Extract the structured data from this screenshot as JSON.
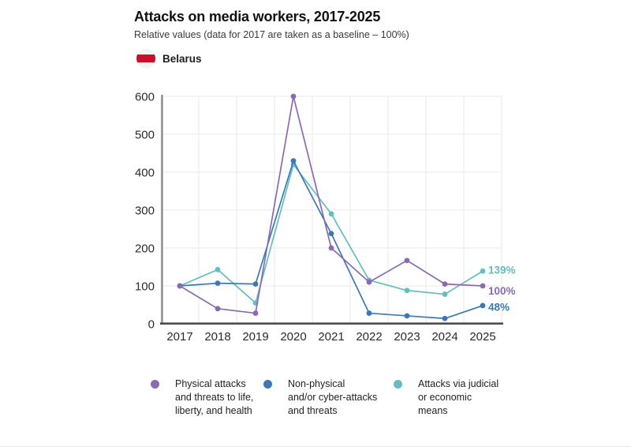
{
  "header": {
    "title": "Attacks on media workers, 2017-2025",
    "subtitle": "Relative values (data for 2017 are taken as a baseline – 100%)"
  },
  "country": {
    "name": "Belarus",
    "flag_red": "#c8102e"
  },
  "chart_data": {
    "type": "line",
    "x": [
      2017,
      2018,
      2019,
      2020,
      2021,
      2022,
      2023,
      2024,
      2025
    ],
    "series": [
      {
        "name": "Physical attacks and threats to life, liberty, and health",
        "color": "#8a6ab0",
        "values": [
          100,
          40,
          28,
          600,
          200,
          110,
          167,
          105,
          100
        ],
        "end_label": "100%"
      },
      {
        "name": "Non-physical and/or cyber-attacks and threats",
        "color": "#3d78b3",
        "values": [
          100,
          107,
          105,
          430,
          238,
          28,
          21,
          14,
          48
        ],
        "end_label": "48%"
      },
      {
        "name": "Attacks via judicial or economic means",
        "color": "#62bec0",
        "values": [
          100,
          143,
          55,
          420,
          290,
          115,
          88,
          78,
          139
        ],
        "end_label": "139%"
      }
    ],
    "title": "Attacks on media workers, 2017-2025",
    "xlabel": "",
    "ylabel": "",
    "ylim": [
      0,
      600
    ],
    "yticks": [
      0,
      100,
      200,
      300,
      400,
      500,
      600
    ],
    "grid": true,
    "legend_position": "bottom"
  },
  "legend": {
    "items": [
      {
        "label": "Physical attacks\nand threats to life,\nliberty, and health"
      },
      {
        "label": "Non-physical\nand/or cyber-attacks\nand threats"
      },
      {
        "label": "Attacks via judicial\nor economic\nmeans"
      }
    ]
  }
}
